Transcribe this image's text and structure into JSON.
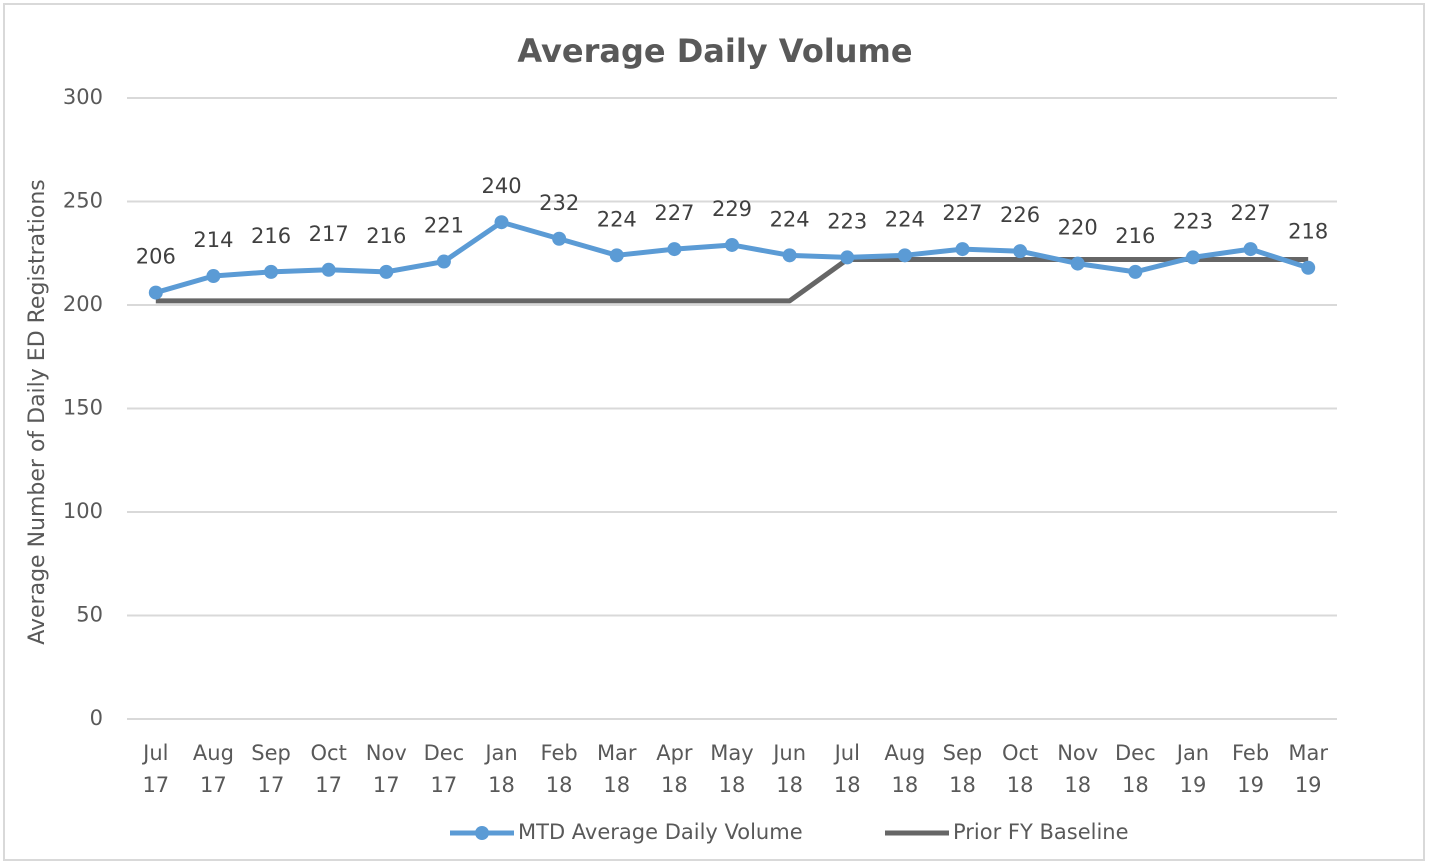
{
  "chart_data": {
    "type": "line",
    "title": "Average Daily Volume",
    "y_label": "Average Number of Daily ED Registrations",
    "categories": [
      [
        "Jul",
        "17"
      ],
      [
        "Aug",
        "17"
      ],
      [
        "Sep",
        "17"
      ],
      [
        "Oct",
        "17"
      ],
      [
        "Nov",
        "17"
      ],
      [
        "Dec",
        "17"
      ],
      [
        "Jan",
        "18"
      ],
      [
        "Feb",
        "18"
      ],
      [
        "Mar",
        "18"
      ],
      [
        "Apr",
        "18"
      ],
      [
        "May",
        "18"
      ],
      [
        "Jun",
        "18"
      ],
      [
        "Jul",
        "18"
      ],
      [
        "Aug",
        "18"
      ],
      [
        "Sep",
        "18"
      ],
      [
        "Oct",
        "18"
      ],
      [
        "Nov",
        "18"
      ],
      [
        "Dec",
        "18"
      ],
      [
        "Jan",
        "19"
      ],
      [
        "Feb",
        "19"
      ],
      [
        "Mar",
        "19"
      ]
    ],
    "series": [
      {
        "name": "MTD Average Daily Volume",
        "color": "#5b9bd5",
        "markers": true,
        "data_labels": true,
        "values": [
          206,
          214,
          216,
          217,
          216,
          221,
          240,
          232,
          224,
          227,
          229,
          224,
          223,
          224,
          227,
          226,
          220,
          216,
          223,
          227,
          218
        ]
      },
      {
        "name": "Prior FY Baseline",
        "color": "#666666",
        "markers": false,
        "data_labels": false,
        "values": [
          202,
          202,
          202,
          202,
          202,
          202,
          202,
          202,
          202,
          202,
          202,
          202,
          222,
          222,
          222,
          222,
          222,
          222,
          222,
          222,
          222
        ]
      }
    ],
    "ylim": [
      0,
      300
    ],
    "yticks": [
      0,
      50,
      100,
      150,
      200,
      250,
      300
    ],
    "grid": true
  }
}
